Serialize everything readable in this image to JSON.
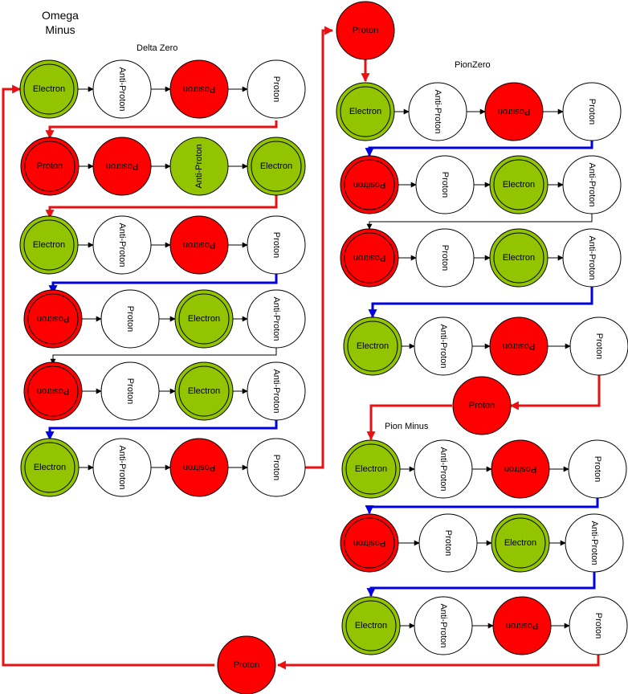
{
  "titles": {
    "omega_line1": "Omega",
    "omega_line2": "Minus",
    "delta_zero": "Delta Zero",
    "pion_zero": "PionZero",
    "pion_minus": "Pion Minus"
  },
  "colors": {
    "red": "#ff0000",
    "green": "#92c400",
    "white": "#ffffff",
    "blue_link": "#0000e0",
    "red_link": "#e81010",
    "black_link": "#000000"
  },
  "labels": {
    "electron": "Electron",
    "positron": "Positron",
    "proton": "Proton",
    "anti_proton": "Anti-Proton"
  },
  "left_chain": {
    "title": "Delta Zero",
    "rows": [
      [
        "Electron",
        "Anti-Proton",
        "Positron",
        "Proton"
      ],
      [
        "Proton",
        "Positron",
        "Anti-Proton",
        "Electron"
      ],
      [
        "Electron",
        "Anti-Proton",
        "Positron",
        "Proton"
      ],
      [
        "Positron",
        "Proton",
        "Electron",
        "Anti-Proton"
      ],
      [
        "Positron",
        "Proton",
        "Electron",
        "Anti-Proton"
      ],
      [
        "Electron",
        "Anti-Proton",
        "Positron",
        "Proton"
      ]
    ]
  },
  "right_top_chain": {
    "title": "PionZero",
    "rows": [
      [
        "Electron",
        "Anti-Proton",
        "Positron",
        "Proton"
      ],
      [
        "Positron",
        "Proton",
        "Electron",
        "Anti-Proton"
      ],
      [
        "Positron",
        "Proton",
        "Electron",
        "Anti-Proton"
      ],
      [
        "Electron",
        "Anti-Proton",
        "Positron",
        "Proton"
      ]
    ]
  },
  "right_bottom_chain": {
    "title": "Pion Minus",
    "rows": [
      [
        "Electron",
        "Anti-Proton",
        "Positron",
        "Proton"
      ],
      [
        "Positron",
        "Proton",
        "Electron",
        "Anti-Proton"
      ],
      [
        "Electron",
        "Anti-Proton",
        "Positron",
        "Proton"
      ]
    ]
  },
  "connector_protons": [
    "Proton",
    "Proton",
    "Proton"
  ]
}
